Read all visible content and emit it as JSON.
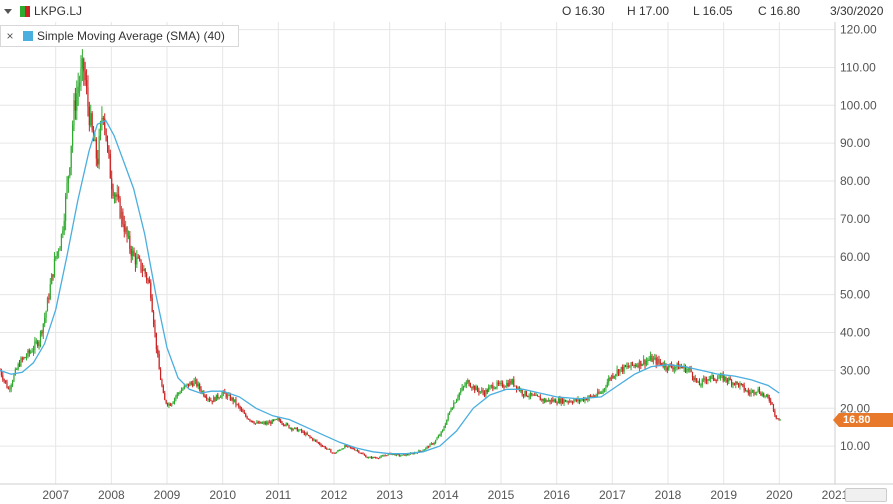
{
  "header": {
    "symbol": "LKPG.LJ",
    "open": "O 16.30",
    "high": "H 17.00",
    "low": "L 16.05",
    "close": "C 16.80",
    "date": "3/30/2020"
  },
  "legend": {
    "close_glyph": "×",
    "indicator": "Simple Moving Average (SMA) (40)"
  },
  "price_tag": "16.80",
  "colors": {
    "up": "#2eaa2e",
    "down": "#cc2222",
    "sma": "#4aaedf",
    "grid": "#e6e6e6",
    "price_tag": "#e8792a"
  },
  "chart_data": {
    "type": "candlestick",
    "ylim": [
      0,
      122
    ],
    "xlim": [
      2006.0,
      2021.0
    ],
    "yticks": [
      10,
      20,
      30,
      40,
      50,
      60,
      70,
      80,
      90,
      100,
      110,
      120
    ],
    "ytick_labels": [
      "10.00",
      "20.00",
      "30.00",
      "40.00",
      "50.00",
      "60.00",
      "70.00",
      "80.00",
      "90.00",
      "100.00",
      "110.00",
      "120.00"
    ],
    "xticks": [
      2007,
      2008,
      2009,
      2010,
      2011,
      2012,
      2013,
      2014,
      2015,
      2016,
      2017,
      2018,
      2019,
      2020,
      2021
    ],
    "xtick_labels": [
      "2007",
      "2008",
      "2009",
      "2010",
      "2011",
      "2012",
      "2013",
      "2014",
      "2015",
      "2016",
      "2017",
      "2018",
      "2019",
      "2020",
      "2021"
    ],
    "grid": true,
    "price_path": [
      [
        2006.0,
        30
      ],
      [
        2006.15,
        25
      ],
      [
        2006.35,
        32
      ],
      [
        2006.55,
        35
      ],
      [
        2006.7,
        38
      ],
      [
        2006.82,
        45
      ],
      [
        2006.9,
        52
      ],
      [
        2007.0,
        60
      ],
      [
        2007.1,
        65
      ],
      [
        2007.18,
        75
      ],
      [
        2007.25,
        85
      ],
      [
        2007.32,
        98
      ],
      [
        2007.4,
        105
      ],
      [
        2007.5,
        110
      ],
      [
        2007.58,
        100
      ],
      [
        2007.66,
        92
      ],
      [
        2007.75,
        85
      ],
      [
        2007.85,
        100
      ],
      [
        2007.93,
        88
      ],
      [
        2008.0,
        80
      ],
      [
        2008.1,
        75
      ],
      [
        2008.2,
        70
      ],
      [
        2008.3,
        64
      ],
      [
        2008.4,
        60
      ],
      [
        2008.5,
        58
      ],
      [
        2008.6,
        56
      ],
      [
        2008.7,
        52
      ],
      [
        2008.78,
        40
      ],
      [
        2008.86,
        30
      ],
      [
        2008.95,
        22
      ],
      [
        2009.05,
        21
      ],
      [
        2009.2,
        24
      ],
      [
        2009.35,
        26
      ],
      [
        2009.5,
        27
      ],
      [
        2009.65,
        24
      ],
      [
        2009.8,
        22
      ],
      [
        2010.0,
        24
      ],
      [
        2010.2,
        22
      ],
      [
        2010.4,
        18
      ],
      [
        2010.6,
        16
      ],
      [
        2010.8,
        16
      ],
      [
        2011.0,
        17
      ],
      [
        2011.2,
        15
      ],
      [
        2011.4,
        14
      ],
      [
        2011.6,
        12
      ],
      [
        2011.8,
        10
      ],
      [
        2012.0,
        8
      ],
      [
        2012.2,
        10
      ],
      [
        2012.4,
        9
      ],
      [
        2012.6,
        7
      ],
      [
        2012.8,
        7
      ],
      [
        2013.0,
        8
      ],
      [
        2013.2,
        7.5
      ],
      [
        2013.4,
        8
      ],
      [
        2013.6,
        9
      ],
      [
        2013.8,
        11
      ],
      [
        2013.95,
        14
      ],
      [
        2014.1,
        20
      ],
      [
        2014.25,
        24
      ],
      [
        2014.4,
        27
      ],
      [
        2014.55,
        25
      ],
      [
        2014.7,
        24
      ],
      [
        2014.85,
        26
      ],
      [
        2015.0,
        26
      ],
      [
        2015.2,
        27
      ],
      [
        2015.4,
        24
      ],
      [
        2015.6,
        23
      ],
      [
        2015.8,
        22
      ],
      [
        2016.0,
        22
      ],
      [
        2016.2,
        22
      ],
      [
        2016.4,
        22
      ],
      [
        2016.6,
        23
      ],
      [
        2016.8,
        24
      ],
      [
        2016.95,
        28
      ],
      [
        2017.1,
        30
      ],
      [
        2017.3,
        31
      ],
      [
        2017.5,
        32
      ],
      [
        2017.7,
        33
      ],
      [
        2017.85,
        32
      ],
      [
        2018.0,
        31
      ],
      [
        2018.2,
        31
      ],
      [
        2018.4,
        30
      ],
      [
        2018.55,
        26
      ],
      [
        2018.7,
        28
      ],
      [
        2018.85,
        28
      ],
      [
        2019.0,
        28
      ],
      [
        2019.15,
        27
      ],
      [
        2019.3,
        26
      ],
      [
        2019.45,
        24
      ],
      [
        2019.6,
        25
      ],
      [
        2019.75,
        23
      ],
      [
        2019.85,
        22
      ],
      [
        2019.93,
        18
      ],
      [
        2020.0,
        16.8
      ]
    ],
    "sma_40": [
      [
        2006.0,
        30
      ],
      [
        2006.2,
        29
      ],
      [
        2006.4,
        29.5
      ],
      [
        2006.6,
        32
      ],
      [
        2006.8,
        37
      ],
      [
        2007.0,
        46
      ],
      [
        2007.2,
        60
      ],
      [
        2007.4,
        75
      ],
      [
        2007.6,
        88
      ],
      [
        2007.75,
        95
      ],
      [
        2007.9,
        96
      ],
      [
        2008.05,
        92
      ],
      [
        2008.2,
        86
      ],
      [
        2008.4,
        78
      ],
      [
        2008.6,
        66
      ],
      [
        2008.8,
        50
      ],
      [
        2009.0,
        36
      ],
      [
        2009.2,
        28
      ],
      [
        2009.4,
        25
      ],
      [
        2009.6,
        24
      ],
      [
        2009.8,
        24.5
      ],
      [
        2010.0,
        24.5
      ],
      [
        2010.3,
        23
      ],
      [
        2010.6,
        20
      ],
      [
        2010.9,
        18
      ],
      [
        2011.2,
        17
      ],
      [
        2011.5,
        15
      ],
      [
        2011.8,
        13
      ],
      [
        2012.1,
        11
      ],
      [
        2012.4,
        9.5
      ],
      [
        2012.7,
        8.5
      ],
      [
        2013.0,
        8
      ],
      [
        2013.3,
        8
      ],
      [
        2013.6,
        8.5
      ],
      [
        2013.9,
        10
      ],
      [
        2014.2,
        14
      ],
      [
        2014.5,
        20
      ],
      [
        2014.8,
        23.5
      ],
      [
        2015.1,
        25
      ],
      [
        2015.4,
        25
      ],
      [
        2015.7,
        24
      ],
      [
        2016.0,
        23
      ],
      [
        2016.4,
        22.5
      ],
      [
        2016.8,
        23
      ],
      [
        2017.1,
        26
      ],
      [
        2017.4,
        29
      ],
      [
        2017.7,
        31
      ],
      [
        2018.0,
        31.5
      ],
      [
        2018.3,
        31
      ],
      [
        2018.6,
        30
      ],
      [
        2018.9,
        29
      ],
      [
        2019.2,
        28.5
      ],
      [
        2019.5,
        27.5
      ],
      [
        2019.8,
        26
      ],
      [
        2020.0,
        24
      ]
    ]
  }
}
